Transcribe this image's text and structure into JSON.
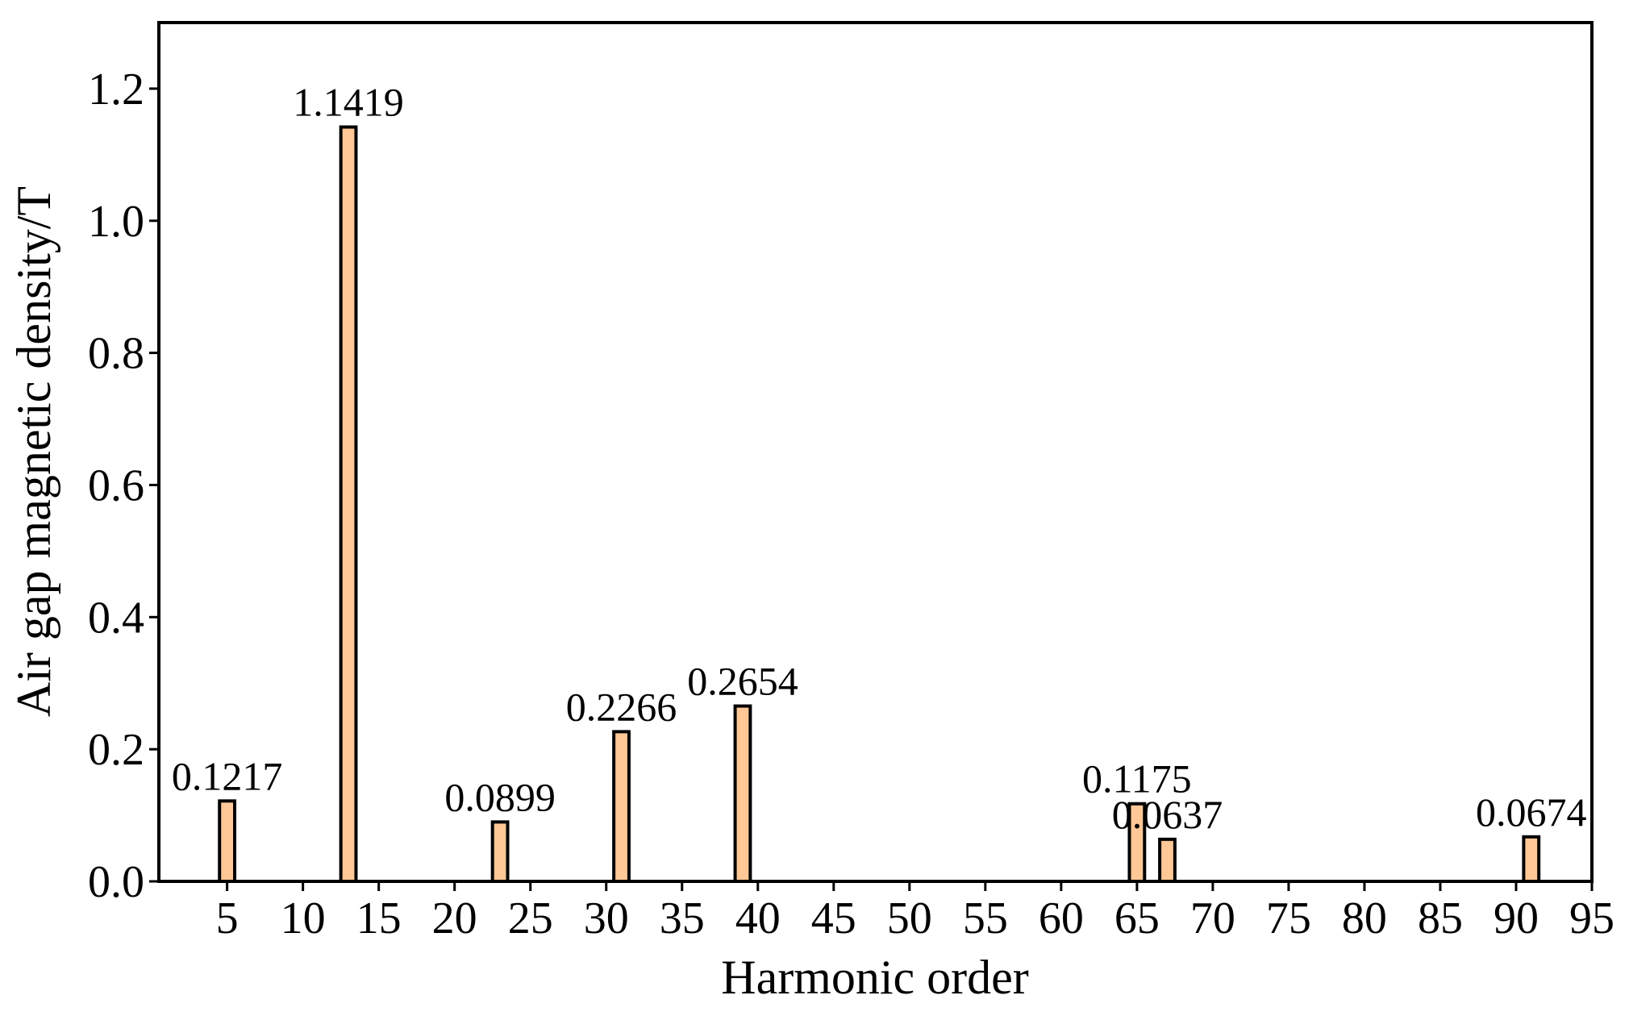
{
  "chart_data": {
    "type": "bar",
    "x_label": "Harmonic order",
    "y_label": "Air gap magnetic density/T",
    "x": [
      5,
      13,
      23,
      31,
      39,
      65,
      67,
      91
    ],
    "values": [
      0.1217,
      1.1419,
      0.0899,
      0.2266,
      0.2654,
      0.1175,
      0.0637,
      0.0674
    ],
    "bar_width": 1,
    "color": "#ffc896",
    "edgecolor": "#000000",
    "xlim": [
      0.5,
      95
    ],
    "xticks": [
      5,
      10,
      15,
      20,
      25,
      30,
      35,
      40,
      45,
      50,
      55,
      60,
      65,
      70,
      75,
      80,
      85,
      90,
      95
    ],
    "ylim": [
      0,
      1.3
    ],
    "yticks": [
      {
        "value": 0,
        "label": "0.0"
      },
      0.2,
      0.4,
      0.6,
      0.8,
      {
        "value": 1,
        "label": "1.0"
      },
      1.2
    ],
    "grid": false
  }
}
